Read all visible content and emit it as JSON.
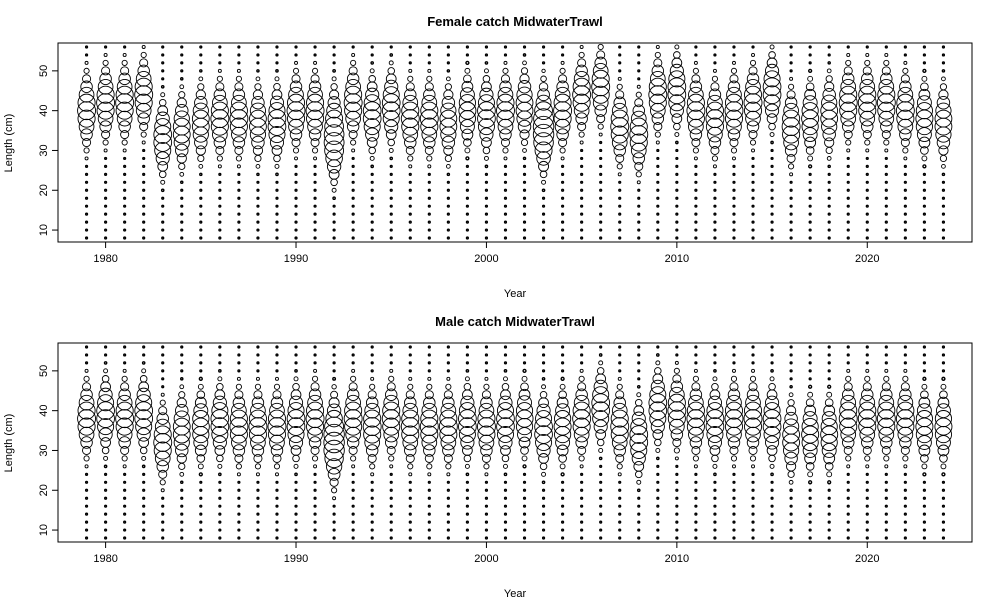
{
  "chart_data": [
    {
      "type": "scatter",
      "style": "bubble",
      "title": "Female catch MidwaterTrawl",
      "xlabel": "Year",
      "ylabel": "Length (cm)",
      "xlim": [
        1977.5,
        2025.5
      ],
      "ylim": [
        7,
        57
      ],
      "xticks": [
        1980,
        1990,
        2000,
        2010,
        2020
      ],
      "yticks": [
        10,
        20,
        30,
        40,
        50
      ],
      "years": [
        1979,
        1980,
        1981,
        1982,
        1983,
        1984,
        1985,
        1986,
        1987,
        1988,
        1989,
        1990,
        1991,
        1992,
        1993,
        1994,
        1995,
        1996,
        1997,
        1998,
        1999,
        2000,
        2001,
        2002,
        2003,
        2004,
        2005,
        2006,
        2007,
        2008,
        2009,
        2010,
        2011,
        2012,
        2013,
        2014,
        2015,
        2016,
        2017,
        2018,
        2019,
        2020,
        2021,
        2022,
        2023,
        2024
      ],
      "length_bins": [
        8,
        10,
        12,
        14,
        16,
        18,
        20,
        22,
        24,
        26,
        28,
        30,
        32,
        34,
        36,
        38,
        40,
        42,
        44,
        46,
        48,
        50,
        52,
        54,
        56
      ],
      "modes": [
        {
          "year": 1979,
          "peaks": [
            [
              40,
              1.0
            ]
          ]
        },
        {
          "year": 1980,
          "peaks": [
            [
              42,
              1.0
            ]
          ]
        },
        {
          "year": 1981,
          "peaks": [
            [
              42,
              1.0
            ]
          ]
        },
        {
          "year": 1982,
          "peaks": [
            [
              44,
              1.0
            ]
          ]
        },
        {
          "year": 1983,
          "peaks": [
            [
              33,
              1.0
            ]
          ]
        },
        {
          "year": 1984,
          "peaks": [
            [
              35,
              0.9
            ]
          ]
        },
        {
          "year": 1985,
          "peaks": [
            [
              37,
              0.9
            ]
          ]
        },
        {
          "year": 1986,
          "peaks": [
            [
              38,
              1.0
            ]
          ]
        },
        {
          "year": 1987,
          "peaks": [
            [
              38,
              1.0
            ]
          ]
        },
        {
          "year": 1988,
          "peaks": [
            [
              37,
              0.9
            ]
          ]
        },
        {
          "year": 1989,
          "peaks": [
            [
              37,
              1.0
            ]
          ]
        },
        {
          "year": 1990,
          "peaks": [
            [
              40,
              1.0
            ]
          ]
        },
        {
          "year": 1991,
          "peaks": [
            [
              40,
              1.0
            ]
          ]
        },
        {
          "year": 1992,
          "peaks": [
            [
              31,
              1.0
            ],
            [
              38,
              0.6
            ]
          ]
        },
        {
          "year": 1993,
          "peaks": [
            [
              42,
              1.0
            ]
          ]
        },
        {
          "year": 1994,
          "peaks": [
            [
              39,
              1.0
            ]
          ]
        },
        {
          "year": 1995,
          "peaks": [
            [
              41,
              1.0
            ]
          ]
        },
        {
          "year": 1996,
          "peaks": [
            [
              38,
              1.0
            ]
          ]
        },
        {
          "year": 1997,
          "peaks": [
            [
              38,
              1.0
            ]
          ]
        },
        {
          "year": 1998,
          "peaks": [
            [
              37,
              0.9
            ]
          ]
        },
        {
          "year": 1999,
          "peaks": [
            [
              40,
              0.9
            ]
          ]
        },
        {
          "year": 2000,
          "peaks": [
            [
              39,
              1.0
            ]
          ]
        },
        {
          "year": 2001,
          "peaks": [
            [
              40,
              1.0
            ]
          ]
        },
        {
          "year": 2002,
          "peaks": [
            [
              41,
              0.9
            ]
          ]
        },
        {
          "year": 2003,
          "peaks": [
            [
              33,
              1.0
            ],
            [
              39,
              0.7
            ]
          ]
        },
        {
          "year": 2004,
          "peaks": [
            [
              40,
              1.0
            ]
          ]
        },
        {
          "year": 2005,
          "peaks": [
            [
              44,
              1.0
            ]
          ]
        },
        {
          "year": 2006,
          "peaks": [
            [
              46,
              1.0
            ]
          ]
        },
        {
          "year": 2007,
          "peaks": [
            [
              36,
              1.0
            ]
          ]
        },
        {
          "year": 2008,
          "peaks": [
            [
              34,
              1.0
            ]
          ]
        },
        {
          "year": 2009,
          "peaks": [
            [
              44,
              1.0
            ]
          ]
        },
        {
          "year": 2010,
          "peaks": [
            [
              45,
              1.0
            ]
          ]
        },
        {
          "year": 2011,
          "peaks": [
            [
              40,
              1.0
            ]
          ]
        },
        {
          "year": 2012,
          "peaks": [
            [
              38,
              1.0
            ]
          ]
        },
        {
          "year": 2013,
          "peaks": [
            [
              40,
              1.0
            ]
          ]
        },
        {
          "year": 2014,
          "peaks": [
            [
              42,
              1.0
            ]
          ]
        },
        {
          "year": 2015,
          "peaks": [
            [
              45,
              1.0
            ]
          ]
        },
        {
          "year": 2016,
          "peaks": [
            [
              36,
              1.0
            ]
          ]
        },
        {
          "year": 2017,
          "peaks": [
            [
              38,
              0.9
            ]
          ]
        },
        {
          "year": 2018,
          "peaks": [
            [
              39,
              0.9
            ]
          ]
        },
        {
          "year": 2019,
          "peaks": [
            [
              42,
              1.0
            ]
          ]
        },
        {
          "year": 2020,
          "peaks": [
            [
              42,
              1.0
            ]
          ]
        },
        {
          "year": 2021,
          "peaks": [
            [
              42,
              1.0
            ]
          ]
        },
        {
          "year": 2022,
          "peaks": [
            [
              40,
              1.0
            ]
          ]
        },
        {
          "year": 2023,
          "peaks": [
            [
              38,
              0.9
            ]
          ]
        },
        {
          "year": 2024,
          "peaks": [
            [
              37,
              0.9
            ]
          ]
        }
      ]
    },
    {
      "type": "scatter",
      "style": "bubble",
      "title": "Male catch MidwaterTrawl",
      "xlabel": "Year",
      "ylabel": "Length (cm)",
      "xlim": [
        1977.5,
        2025.5
      ],
      "ylim": [
        7,
        57
      ],
      "xticks": [
        1980,
        1990,
        2000,
        2010,
        2020
      ],
      "yticks": [
        10,
        20,
        30,
        40,
        50
      ],
      "years": [
        1979,
        1980,
        1981,
        1982,
        1983,
        1984,
        1985,
        1986,
        1987,
        1988,
        1989,
        1990,
        1991,
        1992,
        1993,
        1994,
        1995,
        1996,
        1997,
        1998,
        1999,
        2000,
        2001,
        2002,
        2003,
        2004,
        2005,
        2006,
        2007,
        2008,
        2009,
        2010,
        2011,
        2012,
        2013,
        2014,
        2015,
        2016,
        2017,
        2018,
        2019,
        2020,
        2021,
        2022,
        2023,
        2024
      ],
      "length_bins": [
        8,
        10,
        12,
        14,
        16,
        18,
        20,
        22,
        24,
        26,
        28,
        30,
        32,
        34,
        36,
        38,
        40,
        42,
        44,
        46,
        48,
        50,
        52,
        54,
        56
      ],
      "modes": [
        {
          "year": 1979,
          "peaks": [
            [
              38,
              1.0
            ]
          ]
        },
        {
          "year": 1980,
          "peaks": [
            [
              39,
              1.0
            ]
          ]
        },
        {
          "year": 1981,
          "peaks": [
            [
              38,
              1.0
            ]
          ]
        },
        {
          "year": 1982,
          "peaks": [
            [
              39,
              1.0
            ]
          ]
        },
        {
          "year": 1983,
          "peaks": [
            [
              32,
              1.0
            ]
          ]
        },
        {
          "year": 1984,
          "peaks": [
            [
              35,
              0.9
            ]
          ]
        },
        {
          "year": 1985,
          "peaks": [
            [
              36,
              0.9
            ]
          ]
        },
        {
          "year": 1986,
          "peaks": [
            [
              37,
              1.0
            ]
          ]
        },
        {
          "year": 1987,
          "peaks": [
            [
              36,
              1.0
            ]
          ]
        },
        {
          "year": 1988,
          "peaks": [
            [
              36,
              1.0
            ]
          ]
        },
        {
          "year": 1989,
          "peaks": [
            [
              36,
              1.0
            ]
          ]
        },
        {
          "year": 1990,
          "peaks": [
            [
              37,
              1.0
            ]
          ]
        },
        {
          "year": 1991,
          "peaks": [
            [
              38,
              1.0
            ]
          ]
        },
        {
          "year": 1992,
          "peaks": [
            [
              30,
              1.0
            ],
            [
              36,
              0.7
            ]
          ]
        },
        {
          "year": 1993,
          "peaks": [
            [
              38,
              1.0
            ]
          ]
        },
        {
          "year": 1994,
          "peaks": [
            [
              36,
              1.0
            ]
          ]
        },
        {
          "year": 1995,
          "peaks": [
            [
              38,
              1.0
            ]
          ]
        },
        {
          "year": 1996,
          "peaks": [
            [
              36,
              1.0
            ]
          ]
        },
        {
          "year": 1997,
          "peaks": [
            [
              36,
              1.0
            ]
          ]
        },
        {
          "year": 1998,
          "peaks": [
            [
              36,
              1.0
            ]
          ]
        },
        {
          "year": 1999,
          "peaks": [
            [
              37,
              1.0
            ]
          ]
        },
        {
          "year": 2000,
          "peaks": [
            [
              36,
              1.0
            ]
          ]
        },
        {
          "year": 2001,
          "peaks": [
            [
              37,
              1.0
            ]
          ]
        },
        {
          "year": 2002,
          "peaks": [
            [
              38,
              0.9
            ]
          ]
        },
        {
          "year": 2003,
          "peaks": [
            [
              35,
              1.0
            ]
          ]
        },
        {
          "year": 2004,
          "peaks": [
            [
              36,
              0.9
            ]
          ]
        },
        {
          "year": 2005,
          "peaks": [
            [
              38,
              1.0
            ]
          ]
        },
        {
          "year": 2006,
          "peaks": [
            [
              41,
              1.0
            ]
          ]
        },
        {
          "year": 2007,
          "peaks": [
            [
              36,
              1.0
            ]
          ]
        },
        {
          "year": 2008,
          "peaks": [
            [
              33,
              1.0
            ]
          ]
        },
        {
          "year": 2009,
          "peaks": [
            [
              41,
              1.0
            ]
          ]
        },
        {
          "year": 2010,
          "peaks": [
            [
              40,
              1.0
            ]
          ]
        },
        {
          "year": 2011,
          "peaks": [
            [
              38,
              1.0
            ]
          ]
        },
        {
          "year": 2012,
          "peaks": [
            [
              37,
              1.0
            ]
          ]
        },
        {
          "year": 2013,
          "peaks": [
            [
              38,
              1.0
            ]
          ]
        },
        {
          "year": 2014,
          "peaks": [
            [
              38,
              1.0
            ]
          ]
        },
        {
          "year": 2015,
          "peaks": [
            [
              37,
              1.0
            ]
          ]
        },
        {
          "year": 2016,
          "peaks": [
            [
              33,
              0.9
            ]
          ]
        },
        {
          "year": 2017,
          "peaks": [
            [
              34,
              0.9
            ]
          ]
        },
        {
          "year": 2018,
          "peaks": [
            [
              34,
              0.9
            ]
          ]
        },
        {
          "year": 2019,
          "peaks": [
            [
              38,
              1.0
            ]
          ]
        },
        {
          "year": 2020,
          "peaks": [
            [
              38,
              1.0
            ]
          ]
        },
        {
          "year": 2021,
          "peaks": [
            [
              38,
              1.0
            ]
          ]
        },
        {
          "year": 2022,
          "peaks": [
            [
              38,
              1.0
            ]
          ]
        },
        {
          "year": 2023,
          "peaks": [
            [
              36,
              0.9
            ]
          ]
        },
        {
          "year": 2024,
          "peaks": [
            [
              36,
              0.9
            ]
          ]
        }
      ]
    }
  ]
}
